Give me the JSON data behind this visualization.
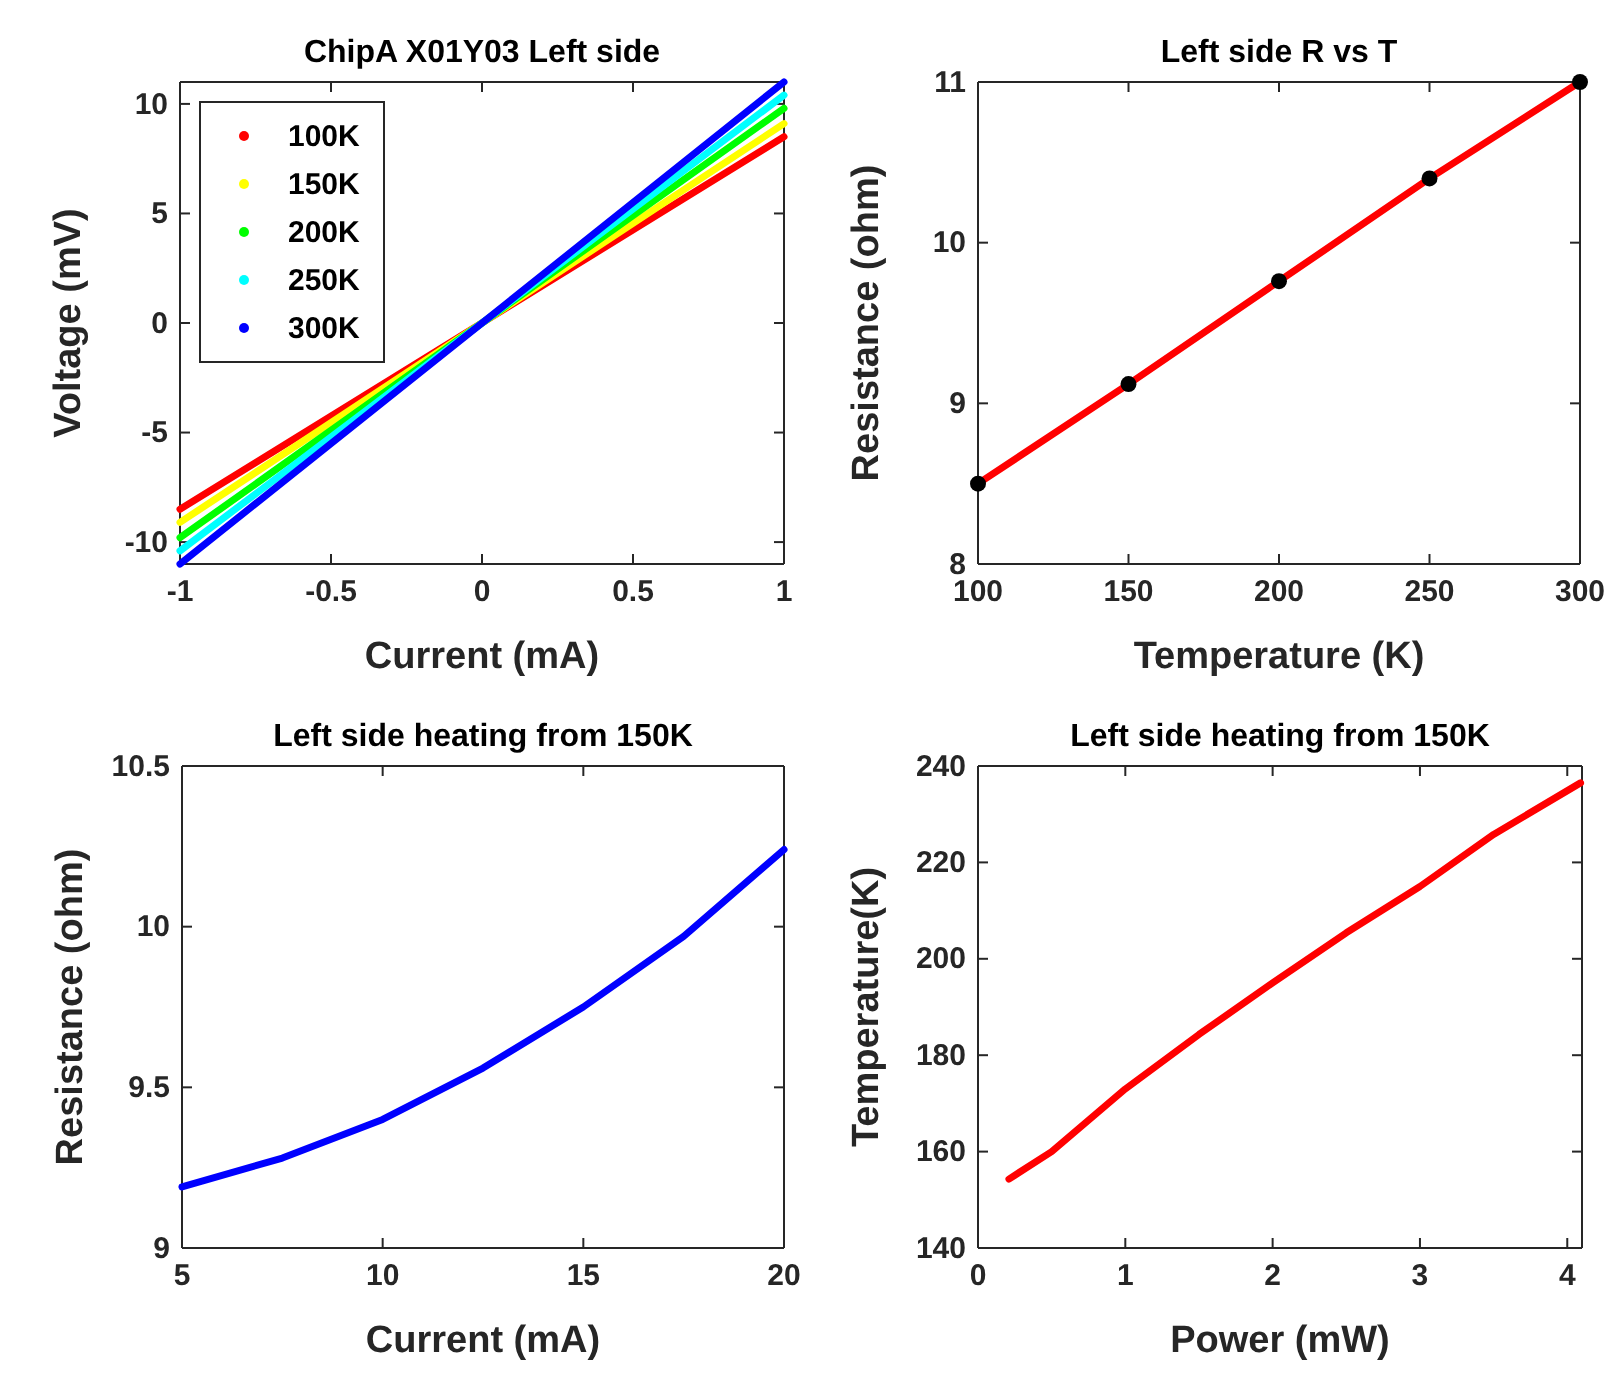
{
  "chart_data": [
    {
      "type": "line",
      "title": "ChipA X01Y03 Left side",
      "xlabel": "Current (mA)",
      "ylabel": "Voltage (mV)",
      "xlim": [
        -1,
        1
      ],
      "ylim": [
        -11,
        11
      ],
      "xticks": [
        -1,
        -0.5,
        0,
        0.5,
        1
      ],
      "yticks": [
        -10,
        -5,
        0,
        5,
        10
      ],
      "legend": "top left",
      "grid": false,
      "marker": "none",
      "x": [
        -1,
        1
      ],
      "series": [
        {
          "name": "100K",
          "color": "#ff0000",
          "values": [
            -8.5,
            8.5
          ]
        },
        {
          "name": "150K",
          "color": "#ffff00",
          "values": [
            -9.1,
            9.1
          ]
        },
        {
          "name": "200K",
          "color": "#00ff00",
          "values": [
            -9.8,
            9.8
          ]
        },
        {
          "name": "250K",
          "color": "#00ffff",
          "values": [
            -10.4,
            10.4
          ]
        },
        {
          "name": "300K",
          "color": "#0000ff",
          "values": [
            -11,
            11
          ]
        }
      ]
    },
    {
      "type": "line",
      "title": "Left side R vs T",
      "xlabel": "Temperature (K)",
      "ylabel": "Resistance (ohm)",
      "xlim": [
        100,
        300
      ],
      "ylim": [
        8,
        11
      ],
      "xticks": [
        100,
        150,
        200,
        250,
        300
      ],
      "yticks": [
        8,
        9,
        10,
        11
      ],
      "grid": false,
      "x": [
        100,
        150,
        200,
        250,
        300
      ],
      "series": [
        {
          "color": "#ff0000",
          "values": [
            8.5,
            9.12,
            9.76,
            10.4,
            11
          ]
        },
        {
          "type": "scatter",
          "color": "#000000",
          "values": [
            8.5,
            9.12,
            9.76,
            10.4,
            11
          ]
        }
      ]
    },
    {
      "type": "line",
      "title": "Left side heating from 150K",
      "xlabel": "Current (mA)",
      "ylabel": "Resistance (ohm)",
      "xlim": [
        5,
        20
      ],
      "ylim": [
        9,
        10.5
      ],
      "xticks": [
        5,
        10,
        15,
        20
      ],
      "yticks": [
        9,
        9.5,
        10,
        10.5
      ],
      "grid": false,
      "x": [
        5,
        7.5,
        10,
        12.5,
        15,
        17.5,
        20
      ],
      "series": [
        {
          "color": "#0000ff",
          "values": [
            9.19,
            9.28,
            9.4,
            9.56,
            9.75,
            9.97,
            10.24
          ]
        }
      ]
    },
    {
      "type": "line",
      "title": "Left side heating from 150K",
      "xlabel": "Power (mW)",
      "ylabel": "Temperature(K)",
      "xlim": [
        0,
        4.1
      ],
      "ylim": [
        140,
        240
      ],
      "xticks": [
        0,
        1,
        2,
        3,
        4
      ],
      "yticks": [
        140,
        160,
        180,
        200,
        220,
        240
      ],
      "grid": false,
      "x": [
        0.21,
        0.5,
        1,
        1.5,
        2,
        2.5,
        3,
        3.5,
        4.09
      ],
      "series": [
        {
          "color": "#ff0000",
          "values": [
            154.3,
            160,
            173,
            184.3,
            195,
            205.4,
            215,
            225.8,
            236.5
          ]
        }
      ]
    }
  ]
}
